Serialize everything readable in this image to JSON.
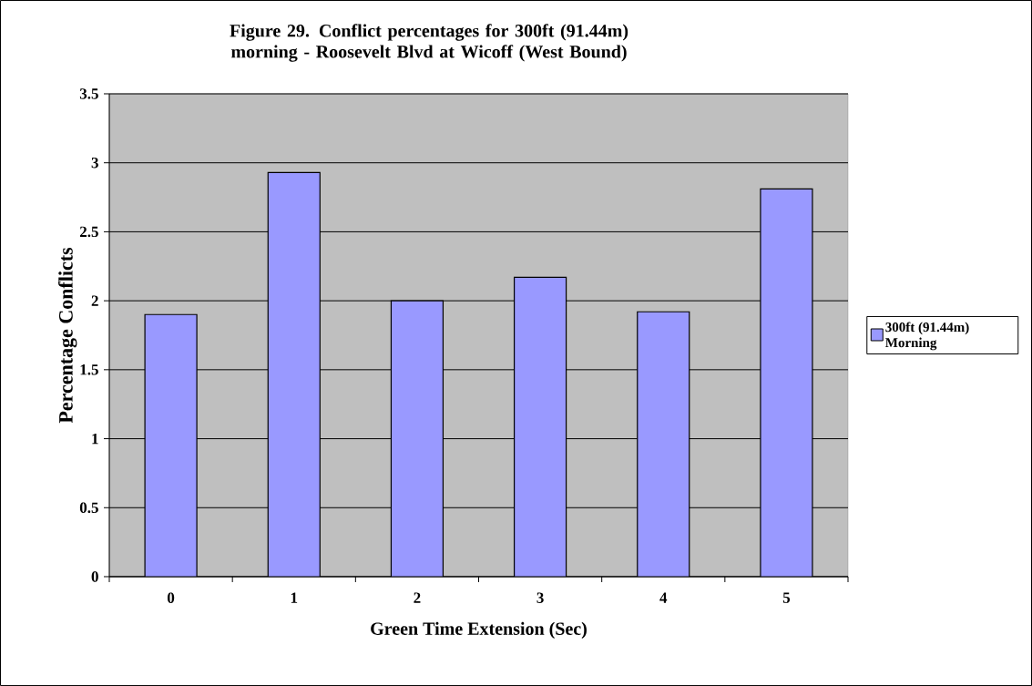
{
  "chart_data": {
    "type": "bar",
    "title": "Figure 29. Conflict percentages for 300ft (91.44m) morning - Roosevelt Blvd at Wicoff (West Bound)",
    "xlabel": "Green Time Extension (Sec)",
    "ylabel": "Percentage Conflicts",
    "categories": [
      "0",
      "1",
      "2",
      "3",
      "4",
      "5"
    ],
    "series": [
      {
        "name": "300ft (91.44m) Morning",
        "color": "#9999ff",
        "values": [
          1.9,
          2.93,
          2.0,
          2.17,
          1.92,
          2.81
        ]
      }
    ],
    "ylim": [
      0,
      3.5
    ],
    "yticks": [
      0,
      0.5,
      1,
      1.5,
      2,
      2.5,
      3,
      3.5
    ],
    "grid": "y",
    "legend": "right"
  }
}
